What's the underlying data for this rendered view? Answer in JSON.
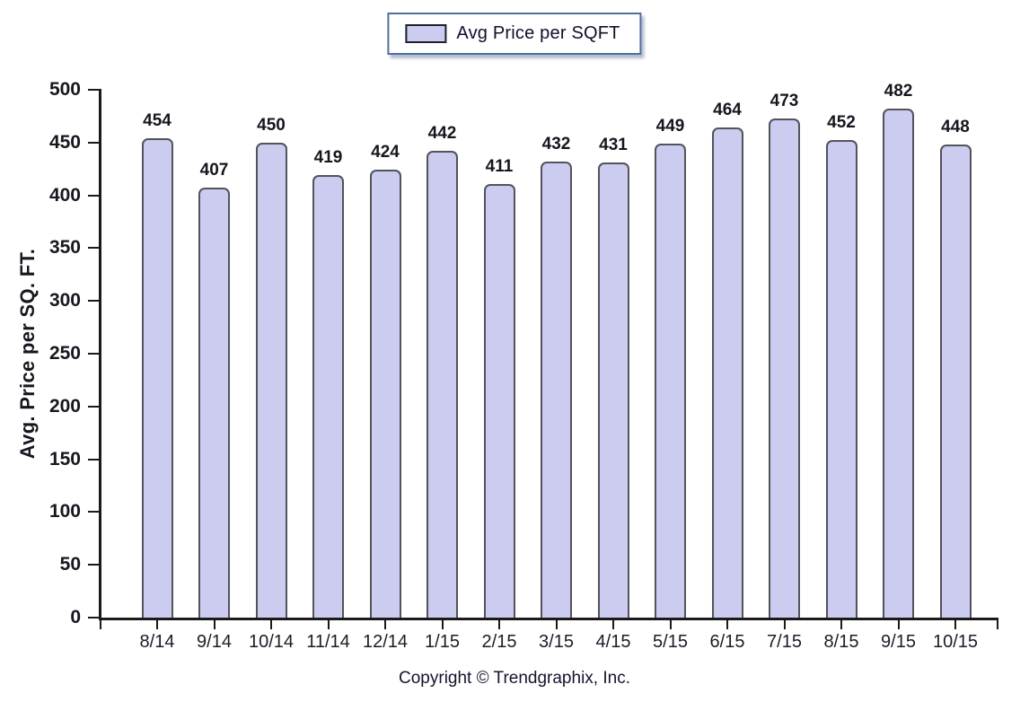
{
  "legend": {
    "label": "Avg Price per SQFT"
  },
  "chart_data": {
    "type": "bar",
    "title": "",
    "legend_label": "Avg Price per SQFT",
    "categories": [
      "8/14",
      "9/14",
      "10/14",
      "11/14",
      "12/14",
      "1/15",
      "2/15",
      "3/15",
      "4/15",
      "5/15",
      "6/15",
      "7/15",
      "8/15",
      "9/15",
      "10/15"
    ],
    "values": [
      454,
      407,
      450,
      419,
      424,
      442,
      411,
      432,
      431,
      449,
      464,
      473,
      452,
      482,
      448
    ],
    "xlabel": "",
    "ylabel": "Avg. Price per SQ. FT.",
    "ylim": [
      0,
      500
    ],
    "ytick_step": 50,
    "grid": false,
    "legend_position": "top-center"
  },
  "footer": {
    "copyright": "Copyright © Trendgraphix, Inc."
  },
  "colors": {
    "bar_fill": "#ccccf0",
    "bar_border": "#53535c",
    "axis": "#1a1a1a",
    "legend_border": "#4f6f9f",
    "text": "#16161f"
  }
}
